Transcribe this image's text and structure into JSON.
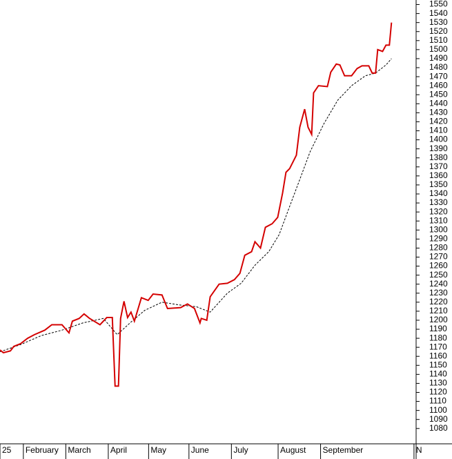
{
  "chart_data": {
    "type": "line",
    "xlim": [
      0,
      196
    ],
    "xticks": [
      {
        "value": 0,
        "label": "25"
      },
      {
        "value": 11,
        "label": "February"
      },
      {
        "value": 31,
        "label": "March"
      },
      {
        "value": 51,
        "label": "April"
      },
      {
        "value": 70,
        "label": "May"
      },
      {
        "value": 89,
        "label": "June"
      },
      {
        "value": 109,
        "label": "July"
      },
      {
        "value": 131,
        "label": "August"
      },
      {
        "value": 151,
        "label": "September"
      },
      {
        "value": 195,
        "label": "N"
      }
    ],
    "ylim": [
      1063,
      1555
    ],
    "yticks": [
      1080,
      1090,
      1100,
      1110,
      1120,
      1130,
      1140,
      1150,
      1160,
      1170,
      1180,
      1190,
      1200,
      1210,
      1220,
      1230,
      1240,
      1250,
      1260,
      1270,
      1280,
      1290,
      1300,
      1310,
      1320,
      1330,
      1340,
      1350,
      1360,
      1370,
      1380,
      1390,
      1400,
      1410,
      1420,
      1430,
      1440,
      1450,
      1460,
      1470,
      1480,
      1490,
      1500,
      1510,
      1520,
      1530,
      1540,
      1550
    ],
    "series": [
      {
        "color": "#d40000",
        "dashed": false,
        "x": [
          0,
          1.6,
          4.9,
          6.5,
          9.7,
          13,
          16.2,
          21.1,
          24.4,
          29.2,
          32.5,
          34.1,
          37.3,
          39.6,
          42.2,
          47.1,
          50.3,
          52.9,
          54.2,
          55.8,
          56.8,
          58.4,
          60.1,
          61.7,
          63.3,
          66.6,
          69.8,
          72.1,
          76.3,
          78.9,
          85.1,
          88.3,
          91.6,
          94.2,
          94.8,
          97.4,
          99,
          103.2,
          107.1,
          110.4,
          113,
          115.3,
          118.5,
          120.1,
          122.7,
          125,
          128.2,
          130.8,
          133.1,
          134.7,
          136.4,
          139.6,
          141.2,
          143.5,
          145.1,
          146.8,
          147.7,
          150,
          154.2,
          155.8,
          158.4,
          160.1,
          162.3,
          165.6,
          168.2,
          170.5,
          173.7,
          175.3,
          176.9,
          177.9,
          180.2,
          181.8,
          183.4,
          184.4
        ],
        "values": [
          1167,
          1164,
          1166,
          1171,
          1174,
          1180,
          1184,
          1189,
          1195,
          1195,
          1186,
          1199,
          1202,
          1207,
          1202,
          1195,
          1203,
          1203,
          1127,
          1127,
          1202,
          1221,
          1203,
          1209,
          1199,
          1225,
          1222,
          1229,
          1228,
          1213,
          1214,
          1218,
          1213,
          1197,
          1202,
          1200,
          1226,
          1240,
          1241,
          1245,
          1252,
          1272,
          1276,
          1287,
          1280,
          1303,
          1307,
          1314,
          1341,
          1364,
          1368,
          1383,
          1414,
          1434,
          1414,
          1406,
          1452,
          1460,
          1459,
          1475,
          1484,
          1483,
          1471,
          1471,
          1479,
          1482,
          1482,
          1474,
          1474,
          1500,
          1498,
          1505,
          1505,
          1530
        ]
      },
      {
        "color": "#000000",
        "dashed": true,
        "x": [
          0,
          9.7,
          19.5,
          29.2,
          39,
          48.7,
          55.2,
          61.7,
          68.2,
          76.3,
          84.4,
          92.5,
          99,
          107.1,
          113.6,
          120.1,
          126.6,
          131.5,
          136.4,
          141.2,
          146.1,
          152.6,
          159.1,
          165.6,
          172.1,
          176.9,
          181.8,
          184.4
        ],
        "values": [
          1165,
          1173,
          1183,
          1189,
          1197,
          1202,
          1184,
          1198,
          1211,
          1220,
          1217,
          1215,
          1209,
          1230,
          1241,
          1261,
          1276,
          1295,
          1326,
          1356,
          1387,
          1418,
          1444,
          1460,
          1471,
          1474,
          1483,
          1490
        ]
      }
    ]
  }
}
